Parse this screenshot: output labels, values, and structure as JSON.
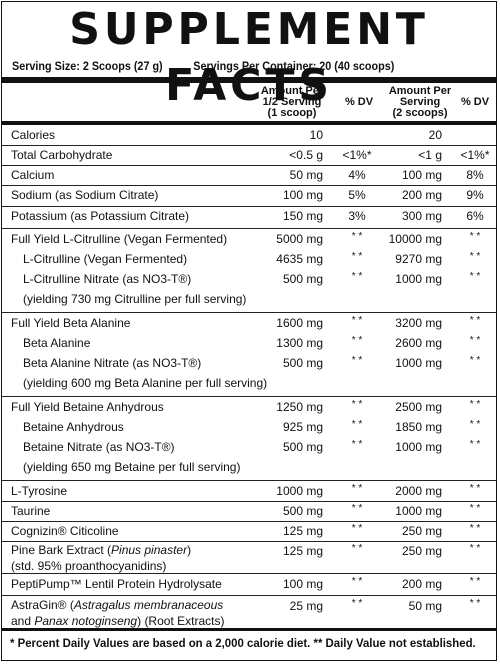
{
  "title": "SUPPLEMENT FACTS",
  "serving_size": "Serving Size: 2 Scoops (27 g)",
  "servings_per_container": "Servings Per Container: 20 (40 scoops)",
  "headers": {
    "amount_half_1": "Amount Per",
    "amount_half_2": "1/2 Serving",
    "amount_half_3": "(1 scoop)",
    "dv_half": "% DV",
    "amount_full_1": "Amount Per",
    "amount_full_2": "Serving",
    "amount_full_3": "(2 scoops)",
    "dv_full": "% DV"
  },
  "rows": [
    {
      "name": "Calories",
      "half": "10",
      "dv_half": "",
      "full": "20",
      "dv_full": ""
    },
    {
      "name": "Total Carbohydrate",
      "half": "<0.5 g",
      "dv_half": "<1%*",
      "full": "<1 g",
      "dv_full": "<1%*"
    },
    {
      "name": "Calcium",
      "half": "50 mg",
      "dv_half": "4%",
      "full": "100 mg",
      "dv_full": "8%"
    },
    {
      "name": "Sodium (as Sodium Citrate)",
      "half": "100 mg",
      "dv_half": "5%",
      "full": "200 mg",
      "dv_full": "9%"
    },
    {
      "name": "Potassium (as Potassium Citrate)",
      "half": "150 mg",
      "dv_half": "3%",
      "full": "300 mg",
      "dv_full": "6%"
    },
    {
      "name": "Full Yield L-Citrulline (Vegan Fermented)",
      "half": "5000 mg",
      "dv_half": "**",
      "full": "10000 mg",
      "dv_full": "**"
    },
    {
      "name": "L-Citrulline (Vegan Fermented)",
      "half": "4635 mg",
      "dv_half": "**",
      "full": "9270 mg",
      "dv_full": "**"
    },
    {
      "name": "L-Citrulline Nitrate (as NO3-T®)",
      "half": "500 mg",
      "dv_half": "**",
      "full": "1000 mg",
      "dv_full": "**"
    },
    {
      "name": "(yielding 730 mg Citrulline per full serving)"
    },
    {
      "name": "Full Yield Beta Alanine",
      "half": "1600 mg",
      "dv_half": "**",
      "full": "3200 mg",
      "dv_full": "**"
    },
    {
      "name": "Beta Alanine",
      "half": "1300 mg",
      "dv_half": "**",
      "full": "2600 mg",
      "dv_full": "**"
    },
    {
      "name": "Beta Alanine Nitrate (as NO3-T®)",
      "half": "500 mg",
      "dv_half": "**",
      "full": "1000 mg",
      "dv_full": "**"
    },
    {
      "name": "(yielding 600 mg Beta Alanine per full serving)"
    },
    {
      "name": "Full Yield Betaine Anhydrous",
      "half": "1250 mg",
      "dv_half": "**",
      "full": "2500 mg",
      "dv_full": "**"
    },
    {
      "name": "Betaine Anhydrous",
      "half": "925 mg",
      "dv_half": "**",
      "full": "1850 mg",
      "dv_full": "**"
    },
    {
      "name": "Betaine Nitrate (as NO3-T®)",
      "half": "500 mg",
      "dv_half": "**",
      "full": "1000 mg",
      "dv_full": "**"
    },
    {
      "name": "(yielding 650 mg Betaine per full serving)"
    },
    {
      "name": "L-Tyrosine",
      "half": "1000 mg",
      "dv_half": "**",
      "full": "2000 mg",
      "dv_full": "**"
    },
    {
      "name": "Taurine",
      "half": "500 mg",
      "dv_half": "**",
      "full": "1000 mg",
      "dv_full": "**"
    },
    {
      "name": "Cognizin® Citicoline",
      "half": "125 mg",
      "dv_half": "**",
      "full": "250 mg",
      "dv_full": "**"
    },
    {
      "name_pre": "Pine Bark Extract (",
      "name_italic": "Pinus pinaster",
      "name_post": ")",
      "name2": "(std. 95% proanthocyanidins)",
      "half": "125 mg",
      "dv_half": "**",
      "full": "250 mg",
      "dv_full": "**"
    },
    {
      "name": "PeptiPump™ Lentil Protein Hydrolysate",
      "half": "100 mg",
      "dv_half": "**",
      "full": "200 mg",
      "dv_full": "**"
    },
    {
      "name_pre": "AstraGin® (",
      "name_italic": "Astragalus membranaceous",
      "name2_pre": "and ",
      "name2_italic": "Panax notoginseng",
      "name2_post": ") (Root Extracts)",
      "half": "25 mg",
      "dv_half": "**",
      "full": "50 mg",
      "dv_full": "**"
    }
  ],
  "footnote": "* Percent Daily Values are based on a 2,000 calorie diet. ** Daily Value not established."
}
